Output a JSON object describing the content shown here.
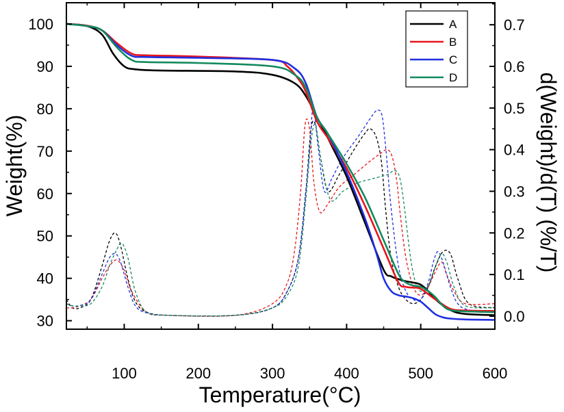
{
  "chart_data": {
    "type": "line",
    "title": "",
    "xlabel": "Temperature(°C)",
    "ylabel": "Weight(%)",
    "ylabel_right": "d(Weight)/d(T) (%/T)",
    "xlim": [
      22,
      600
    ],
    "ylim": [
      28,
      105
    ],
    "ylim_right": [
      -0.0313,
      0.7529
    ],
    "x_ticks": [
      100,
      200,
      300,
      400,
      500,
      600
    ],
    "x_tick_labels": [
      "100",
      "200",
      "300",
      "400",
      "500",
      "600"
    ],
    "y_ticks": [
      30,
      40,
      50,
      60,
      70,
      80,
      90,
      100
    ],
    "y_tick_labels": [
      "30",
      "40",
      "50",
      "60",
      "70",
      "80",
      "90",
      "100"
    ],
    "y2_ticks": [
      0.0,
      0.1,
      0.2,
      0.3,
      0.4,
      0.5,
      0.6,
      0.7
    ],
    "y2_tick_labels": [
      "0.0",
      "0.1",
      "0.2",
      "0.3",
      "0.4",
      "0.5",
      "0.6",
      "0.7"
    ],
    "grid": false,
    "legend_position": "top-right",
    "legend": [
      "A",
      "B",
      "C",
      "D"
    ],
    "colors": {
      "A": "#000000",
      "B": "#e8141b",
      "C": "#1f2fe0",
      "D": "#128a5e"
    },
    "weight_series": [
      {
        "name": "A",
        "x": [
          22,
          50,
          70,
          85,
          100,
          115,
          150,
          250,
          300,
          330,
          345,
          360,
          375,
          400,
          425,
          450,
          460,
          470,
          480,
          490,
          500,
          510,
          520,
          540,
          560,
          600
        ],
        "y": [
          100,
          99.5,
          97.5,
          93,
          90,
          89.3,
          89,
          88.8,
          88,
          86,
          83,
          78,
          73,
          64,
          53,
          42,
          40.5,
          39.8,
          39.3,
          39,
          38.5,
          37,
          35,
          32.5,
          31.6,
          31.3
        ]
      },
      {
        "name": "B",
        "x": [
          22,
          50,
          70,
          90,
          110,
          130,
          200,
          300,
          320,
          335,
          345,
          360,
          375,
          400,
          425,
          450,
          470,
          480,
          490,
          500,
          520,
          540,
          560,
          600
        ],
        "y": [
          100,
          99.6,
          98.5,
          95.5,
          93,
          92.6,
          92.3,
          91.5,
          90,
          87,
          84,
          77,
          73,
          66,
          57,
          47,
          39,
          38,
          37.8,
          37.5,
          35,
          32.8,
          32.4,
          32.3
        ]
      },
      {
        "name": "C",
        "x": [
          22,
          50,
          70,
          90,
          110,
          130,
          200,
          300,
          330,
          345,
          360,
          375,
          400,
          425,
          440,
          450,
          460,
          470,
          480,
          490,
          500,
          510,
          520,
          530,
          540,
          560,
          600
        ],
        "y": [
          100,
          99.5,
          98.5,
          95,
          92.5,
          92.2,
          92,
          91.5,
          89.5,
          86,
          78,
          74,
          65,
          54,
          46,
          40,
          37,
          36,
          35.7,
          35.3,
          34.5,
          33,
          31.5,
          30.8,
          30.5,
          30.3,
          30.2
        ]
      },
      {
        "name": "D",
        "x": [
          22,
          50,
          70,
          90,
          110,
          130,
          200,
          300,
          330,
          345,
          360,
          375,
          400,
          425,
          450,
          470,
          480,
          490,
          500,
          510,
          520,
          530,
          540,
          560,
          600
        ],
        "y": [
          100,
          99.5,
          98.5,
          94.5,
          91.5,
          91,
          90.8,
          90,
          88,
          85,
          78,
          74,
          67,
          59,
          49,
          41,
          39,
          38.3,
          38,
          37,
          35.5,
          33.5,
          32.5,
          32.2,
          32
        ]
      }
    ],
    "derivative_series": [
      {
        "name": "A",
        "x": [
          22,
          30,
          40,
          55,
          70,
          80,
          88,
          95,
          105,
          115,
          130,
          160,
          250,
          300,
          320,
          335,
          345,
          352,
          358,
          365,
          375,
          390,
          410,
          425,
          432,
          440,
          447,
          453,
          460,
          470,
          480,
          490,
          500,
          510,
          520,
          530,
          540,
          550,
          565,
          600
        ],
        "y": [
          0.04,
          0.02,
          0.02,
          0.04,
          0.12,
          0.18,
          0.2,
          0.17,
          0.09,
          0.035,
          0.01,
          0.002,
          0.002,
          0.02,
          0.06,
          0.14,
          0.3,
          0.45,
          0.46,
          0.38,
          0.3,
          0.34,
          0.4,
          0.44,
          0.45,
          0.43,
          0.37,
          0.25,
          0.14,
          0.07,
          0.04,
          0.03,
          0.04,
          0.07,
          0.12,
          0.155,
          0.15,
          0.09,
          0.03,
          0.02
        ]
      },
      {
        "name": "B",
        "x": [
          22,
          30,
          40,
          55,
          70,
          80,
          90,
          100,
          110,
          130,
          160,
          250,
          300,
          320,
          330,
          338,
          344,
          350,
          356,
          364,
          375,
          390,
          410,
          430,
          445,
          455,
          462,
          468,
          472,
          480,
          490,
          500,
          510,
          518,
          528,
          535,
          545,
          560,
          600
        ],
        "y": [
          0.02,
          0.02,
          0.025,
          0.04,
          0.09,
          0.12,
          0.135,
          0.11,
          0.06,
          0.01,
          0.002,
          0.002,
          0.03,
          0.08,
          0.16,
          0.3,
          0.46,
          0.45,
          0.32,
          0.25,
          0.27,
          0.31,
          0.34,
          0.37,
          0.39,
          0.4,
          0.38,
          0.32,
          0.25,
          0.14,
          0.07,
          0.05,
          0.07,
          0.1,
          0.13,
          0.1,
          0.06,
          0.03,
          0.03
        ]
      },
      {
        "name": "C",
        "x": [
          22,
          30,
          40,
          55,
          70,
          80,
          88,
          95,
          105,
          115,
          130,
          160,
          250,
          300,
          320,
          335,
          345,
          350,
          355,
          362,
          370,
          380,
          395,
          415,
          430,
          438,
          443,
          448,
          453,
          460,
          470,
          480,
          490,
          500,
          510,
          517,
          523,
          530,
          540,
          550,
          565,
          600
        ],
        "y": [
          0.03,
          0.025,
          0.025,
          0.04,
          0.1,
          0.14,
          0.15,
          0.13,
          0.07,
          0.025,
          0.008,
          0.002,
          0.002,
          0.02,
          0.06,
          0.14,
          0.3,
          0.4,
          0.5,
          0.4,
          0.3,
          0.33,
          0.38,
          0.43,
          0.47,
          0.49,
          0.495,
          0.48,
          0.4,
          0.26,
          0.12,
          0.06,
          0.04,
          0.04,
          0.08,
          0.13,
          0.155,
          0.13,
          0.07,
          0.03,
          0.015,
          0.01
        ]
      },
      {
        "name": "D",
        "x": [
          22,
          30,
          40,
          55,
          70,
          80,
          90,
          97,
          105,
          115,
          130,
          160,
          250,
          300,
          320,
          335,
          345,
          352,
          358,
          365,
          378,
          395,
          415,
          435,
          455,
          465,
          472,
          478,
          482,
          488,
          495,
          503,
          512,
          520,
          528,
          535,
          545,
          560,
          600
        ],
        "y": [
          0.03,
          0.025,
          0.025,
          0.03,
          0.07,
          0.12,
          0.16,
          0.175,
          0.14,
          0.06,
          0.01,
          0.002,
          0.002,
          0.02,
          0.05,
          0.12,
          0.28,
          0.42,
          0.46,
          0.38,
          0.28,
          0.3,
          0.32,
          0.33,
          0.34,
          0.35,
          0.33,
          0.26,
          0.2,
          0.12,
          0.07,
          0.06,
          0.08,
          0.12,
          0.15,
          0.13,
          0.07,
          0.025,
          0.02
        ]
      }
    ]
  }
}
